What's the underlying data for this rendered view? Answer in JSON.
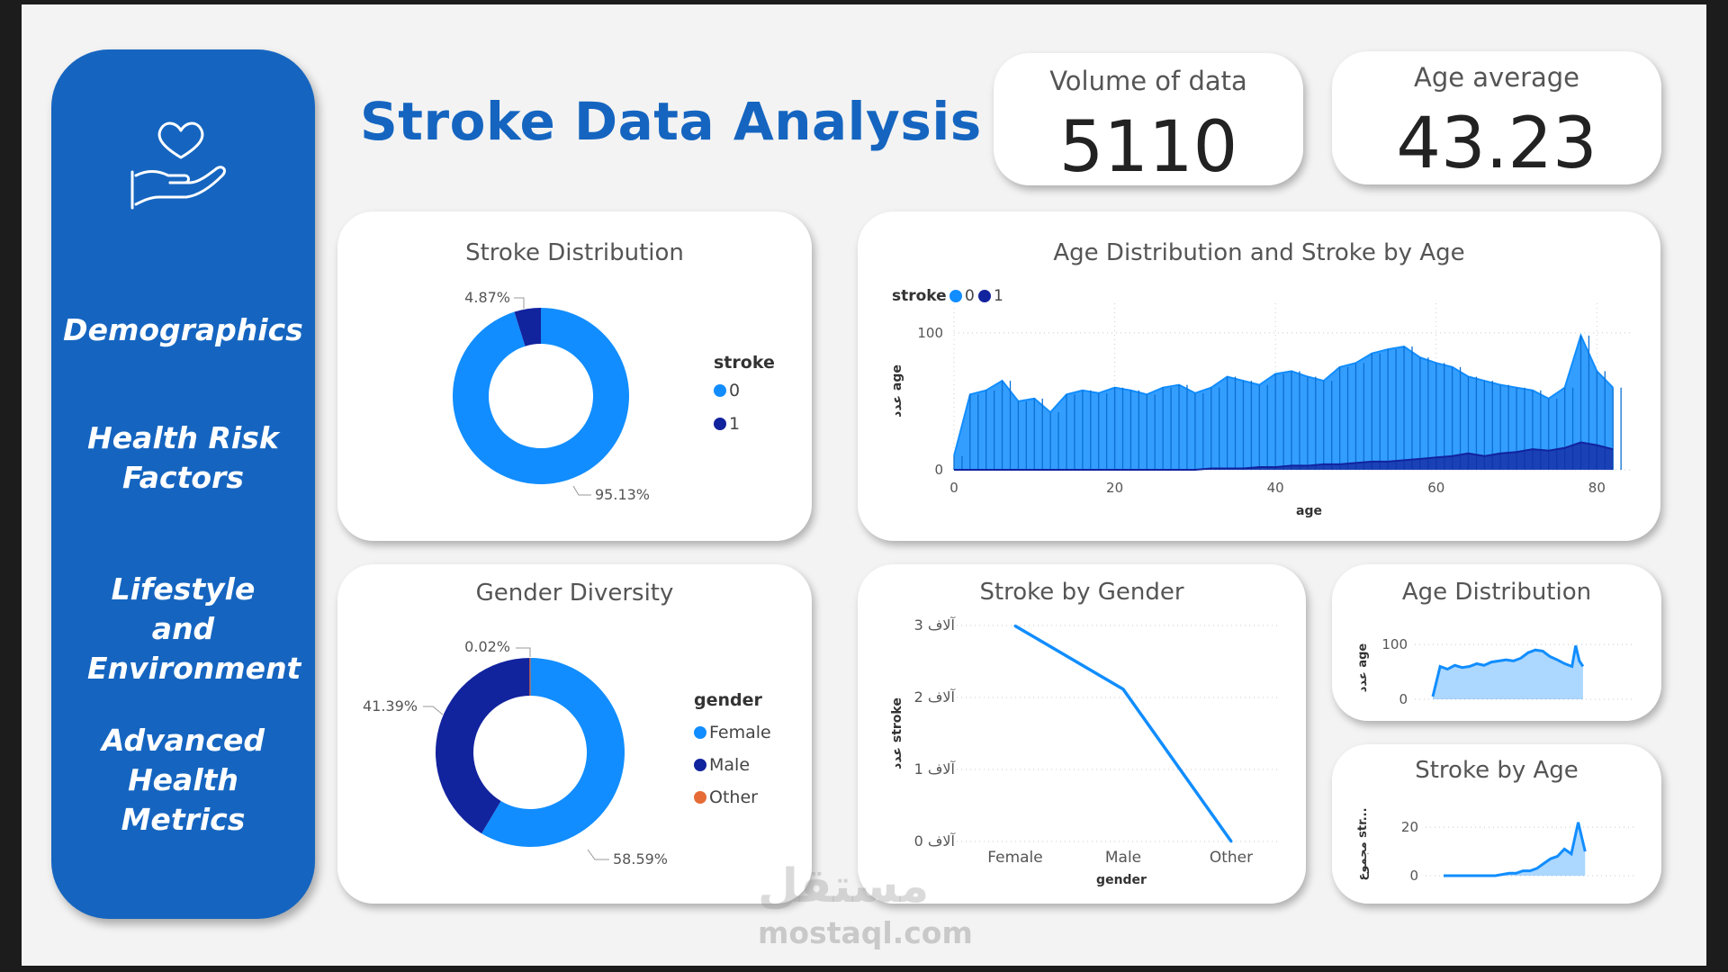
{
  "title": "Stroke Data Analysis",
  "sidebar": {
    "icon": "heart-in-hand-icon",
    "items": [
      {
        "label": "Demographics"
      },
      {
        "label": "Health Risk Factors"
      },
      {
        "label": "Lifestyle and Environment"
      },
      {
        "label": "Advanced Health Metrics"
      }
    ]
  },
  "kpis": {
    "volume": {
      "label": "Volume of data",
      "value": "5110"
    },
    "age_avg": {
      "label": "Age average",
      "value": "43.23"
    }
  },
  "colors": {
    "light_blue": "#118dff",
    "dark_blue": "#12239e",
    "orange": "#e66c37",
    "brand": "#1565c0"
  },
  "watermark": {
    "arabic": "مستقل",
    "site": "mostaql.com"
  },
  "chart_data": [
    {
      "id": "stroke_distribution",
      "type": "pie",
      "title": "Stroke Distribution",
      "legend_title": "stroke",
      "legend_position": "right",
      "slices": [
        {
          "name": "0",
          "value": 95.13,
          "label": "95.13%",
          "color": "#118dff"
        },
        {
          "name": "1",
          "value": 4.87,
          "label": "4.87%",
          "color": "#12239e"
        }
      ]
    },
    {
      "id": "age_distribution_stroke",
      "type": "area",
      "title": "Age Distribution and Stroke by Age",
      "legend_title": "stroke",
      "legend_position": "top-left",
      "xlabel": "age",
      "ylabel": "عدد age",
      "xlim": [
        0,
        85
      ],
      "ylim": [
        0,
        115
      ],
      "xticks": [
        "0",
        "20",
        "40",
        "60",
        "80"
      ],
      "yticks": [
        "0",
        "100"
      ],
      "x": [
        0,
        2,
        4,
        6,
        8,
        10,
        12,
        14,
        16,
        18,
        20,
        22,
        24,
        26,
        28,
        30,
        32,
        34,
        36,
        38,
        40,
        42,
        44,
        46,
        48,
        50,
        52,
        54,
        56,
        58,
        60,
        62,
        64,
        66,
        68,
        70,
        72,
        74,
        76,
        78,
        80,
        82
      ],
      "series": [
        {
          "name": "0",
          "color": "#118dff",
          "values": [
            10,
            55,
            58,
            65,
            50,
            52,
            42,
            55,
            58,
            56,
            60,
            58,
            55,
            60,
            62,
            56,
            60,
            68,
            65,
            62,
            70,
            72,
            68,
            65,
            75,
            78,
            85,
            88,
            90,
            82,
            78,
            75,
            68,
            65,
            62,
            60,
            58,
            52,
            60,
            98,
            72,
            60
          ]
        },
        {
          "name": "1",
          "color": "#12239e",
          "values": [
            0,
            0,
            0,
            0,
            0,
            0,
            0,
            0,
            0,
            0,
            0,
            0,
            0,
            0,
            0,
            0,
            1,
            1,
            1,
            2,
            2,
            3,
            3,
            4,
            4,
            5,
            6,
            6,
            7,
            8,
            9,
            10,
            12,
            10,
            12,
            13,
            15,
            14,
            16,
            20,
            18,
            15
          ]
        }
      ]
    },
    {
      "id": "gender_diversity",
      "type": "pie",
      "title": "Gender Diversity",
      "legend_title": "gender",
      "legend_position": "right",
      "slices": [
        {
          "name": "Female",
          "value": 58.59,
          "label": "58.59%",
          "color": "#118dff"
        },
        {
          "name": "Male",
          "value": 41.39,
          "label": "41.39%",
          "color": "#12239e"
        },
        {
          "name": "Other",
          "value": 0.02,
          "label": "0.02%",
          "color": "#e66c37"
        }
      ]
    },
    {
      "id": "stroke_by_gender",
      "type": "line",
      "title": "Stroke by Gender",
      "xlabel": "gender",
      "ylabel": "عدد stroke",
      "categories": [
        "Female",
        "Male",
        "Other"
      ],
      "values": [
        2994,
        2115,
        1
      ],
      "ylim": [
        0,
        3000
      ],
      "yticks": [
        "0 آلاف",
        "1 آلاف",
        "2 آلاف",
        "3 آلاف"
      ],
      "color": "#118dff"
    },
    {
      "id": "age_distribution_small",
      "type": "area",
      "title": "Age Distribution",
      "ylabel": "عدد age",
      "yticks": [
        "0",
        "100"
      ],
      "ylim": [
        0,
        115
      ],
      "xlim": [
        0,
        85
      ],
      "x": [
        0,
        4,
        8,
        12,
        16,
        20,
        24,
        28,
        32,
        36,
        40,
        44,
        48,
        52,
        56,
        60,
        64,
        68,
        72,
        76,
        78,
        80,
        82
      ],
      "values": [
        5,
        60,
        55,
        62,
        58,
        60,
        65,
        62,
        68,
        70,
        72,
        70,
        75,
        85,
        90,
        88,
        78,
        72,
        65,
        60,
        98,
        70,
        60
      ],
      "color": "#118dff"
    },
    {
      "id": "stroke_by_age_small",
      "type": "area",
      "title": "Stroke by Age",
      "ylabel": "مجموع str...",
      "yticks": [
        "0",
        "20"
      ],
      "ylim": [
        0,
        26
      ],
      "xlim": [
        0,
        85
      ],
      "x": [
        0,
        10,
        20,
        30,
        38,
        42,
        46,
        50,
        54,
        58,
        62,
        66,
        70,
        74,
        78,
        80,
        82
      ],
      "values": [
        0,
        0,
        0,
        0,
        1,
        1,
        2,
        2,
        3,
        5,
        7,
        8,
        11,
        9,
        22,
        16,
        10
      ],
      "color": "#118dff"
    }
  ]
}
